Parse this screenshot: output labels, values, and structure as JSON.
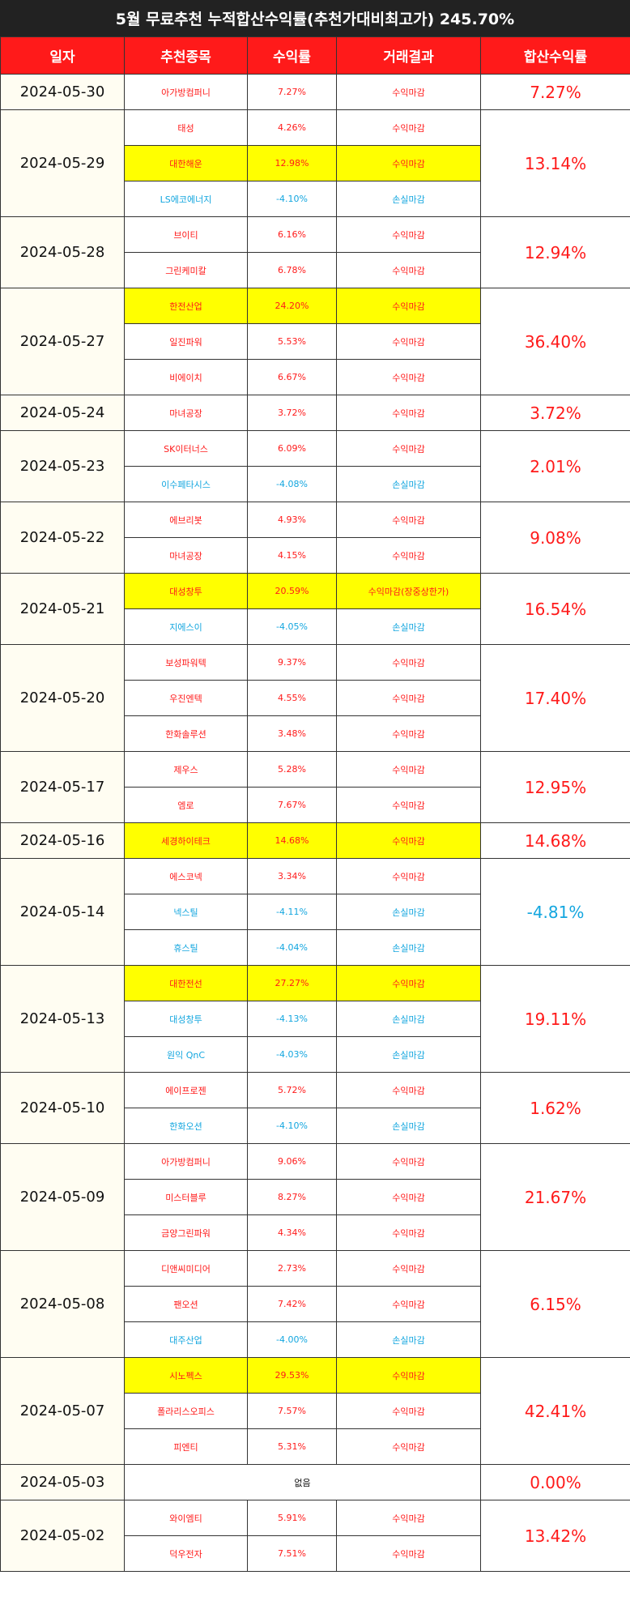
{
  "title": "5월 무료추천 누적합산수익률(추천가대비최고가) 245.70%",
  "headers": [
    "일자",
    "추천종목",
    "수익률",
    "거래결과",
    "합산수익률"
  ],
  "colors": {
    "profit": "#ff1a1a",
    "loss": "#13a6df",
    "header_bg": "#ff1a1a",
    "title_bg": "#222222",
    "highlight": "#ffff00"
  },
  "groups": [
    {
      "date": "2024-05-30",
      "total": "7.27%",
      "total_dir": "up",
      "rows": [
        {
          "stock": "아가방컴퍼니",
          "rate": "7.27%",
          "result": "수익마감",
          "dir": "up",
          "hl": false
        }
      ]
    },
    {
      "date": "2024-05-29",
      "total": "13.14%",
      "total_dir": "up",
      "rows": [
        {
          "stock": "태성",
          "rate": "4.26%",
          "result": "수익마감",
          "dir": "up",
          "hl": false
        },
        {
          "stock": "대한해운",
          "rate": "12.98%",
          "result": "수익마감",
          "dir": "up",
          "hl": true
        },
        {
          "stock": "LS에코에너지",
          "rate": "-4.10%",
          "result": "손실마감",
          "dir": "down",
          "hl": false
        }
      ]
    },
    {
      "date": "2024-05-28",
      "total": "12.94%",
      "total_dir": "up",
      "rows": [
        {
          "stock": "브이티",
          "rate": "6.16%",
          "result": "수익마감",
          "dir": "up",
          "hl": false
        },
        {
          "stock": "그린케미칼",
          "rate": "6.78%",
          "result": "수익마감",
          "dir": "up",
          "hl": false
        }
      ]
    },
    {
      "date": "2024-05-27",
      "total": "36.40%",
      "total_dir": "up",
      "rows": [
        {
          "stock": "한전산업",
          "rate": "24.20%",
          "result": "수익마감",
          "dir": "up",
          "hl": true
        },
        {
          "stock": "일진파워",
          "rate": "5.53%",
          "result": "수익마감",
          "dir": "up",
          "hl": false
        },
        {
          "stock": "비에이치",
          "rate": "6.67%",
          "result": "수익마감",
          "dir": "up",
          "hl": false
        }
      ]
    },
    {
      "date": "2024-05-24",
      "total": "3.72%",
      "total_dir": "up",
      "rows": [
        {
          "stock": "마녀공장",
          "rate": "3.72%",
          "result": "수익마감",
          "dir": "up",
          "hl": false
        }
      ]
    },
    {
      "date": "2024-05-23",
      "total": "2.01%",
      "total_dir": "up",
      "rows": [
        {
          "stock": "SK이터너스",
          "rate": "6.09%",
          "result": "수익마감",
          "dir": "up",
          "hl": false
        },
        {
          "stock": "이수페타시스",
          "rate": "-4.08%",
          "result": "손실마감",
          "dir": "down",
          "hl": false
        }
      ]
    },
    {
      "date": "2024-05-22",
      "total": "9.08%",
      "total_dir": "up",
      "rows": [
        {
          "stock": "에브리봇",
          "rate": "4.93%",
          "result": "수익마감",
          "dir": "up",
          "hl": false
        },
        {
          "stock": "마녀공장",
          "rate": "4.15%",
          "result": "수익마감",
          "dir": "up",
          "hl": false
        }
      ]
    },
    {
      "date": "2024-05-21",
      "total": "16.54%",
      "total_dir": "up",
      "rows": [
        {
          "stock": "대성창투",
          "rate": "20.59%",
          "result": "수익마감(장중상한가)",
          "dir": "up",
          "hl": true
        },
        {
          "stock": "지에스이",
          "rate": "-4.05%",
          "result": "손실마감",
          "dir": "down",
          "hl": false
        }
      ]
    },
    {
      "date": "2024-05-20",
      "total": "17.40%",
      "total_dir": "up",
      "rows": [
        {
          "stock": "보성파워텍",
          "rate": "9.37%",
          "result": "수익마감",
          "dir": "up",
          "hl": false
        },
        {
          "stock": "우진엔텍",
          "rate": "4.55%",
          "result": "수익마감",
          "dir": "up",
          "hl": false
        },
        {
          "stock": "한화솔루션",
          "rate": "3.48%",
          "result": "수익마감",
          "dir": "up",
          "hl": false
        }
      ]
    },
    {
      "date": "2024-05-17",
      "total": "12.95%",
      "total_dir": "up",
      "rows": [
        {
          "stock": "제우스",
          "rate": "5.28%",
          "result": "수익마감",
          "dir": "up",
          "hl": false
        },
        {
          "stock": "엠로",
          "rate": "7.67%",
          "result": "수익마감",
          "dir": "up",
          "hl": false
        }
      ]
    },
    {
      "date": "2024-05-16",
      "total": "14.68%",
      "total_dir": "up",
      "rows": [
        {
          "stock": "세경하이테크",
          "rate": "14.68%",
          "result": "수익마감",
          "dir": "up",
          "hl": true
        }
      ]
    },
    {
      "date": "2024-05-14",
      "total": "-4.81%",
      "total_dir": "down",
      "rows": [
        {
          "stock": "에스코넥",
          "rate": "3.34%",
          "result": "수익마감",
          "dir": "up",
          "hl": false
        },
        {
          "stock": "넥스틸",
          "rate": "-4.11%",
          "result": "손실마감",
          "dir": "down",
          "hl": false
        },
        {
          "stock": "휴스틸",
          "rate": "-4.04%",
          "result": "손실마감",
          "dir": "down",
          "hl": false
        }
      ]
    },
    {
      "date": "2024-05-13",
      "total": "19.11%",
      "total_dir": "up",
      "rows": [
        {
          "stock": "대한전선",
          "rate": "27.27%",
          "result": "수익마감",
          "dir": "up",
          "hl": true
        },
        {
          "stock": "대성창투",
          "rate": "-4.13%",
          "result": "손실마감",
          "dir": "down",
          "hl": false
        },
        {
          "stock": "원익 QnC",
          "rate": "-4.03%",
          "result": "손실마감",
          "dir": "down",
          "hl": false
        }
      ]
    },
    {
      "date": "2024-05-10",
      "total": "1.62%",
      "total_dir": "up",
      "rows": [
        {
          "stock": "에이프로젠",
          "rate": "5.72%",
          "result": "수익마감",
          "dir": "up",
          "hl": false
        },
        {
          "stock": "한화오션",
          "rate": "-4.10%",
          "result": "손실마감",
          "dir": "down",
          "hl": false
        }
      ]
    },
    {
      "date": "2024-05-09",
      "total": "21.67%",
      "total_dir": "up",
      "rows": [
        {
          "stock": "아가방컴퍼니",
          "rate": "9.06%",
          "result": "수익마감",
          "dir": "up",
          "hl": false
        },
        {
          "stock": "미스터블루",
          "rate": "8.27%",
          "result": "수익마감",
          "dir": "up",
          "hl": false
        },
        {
          "stock": "금양그린파워",
          "rate": "4.34%",
          "result": "수익마감",
          "dir": "up",
          "hl": false
        }
      ]
    },
    {
      "date": "2024-05-08",
      "total": "6.15%",
      "total_dir": "up",
      "rows": [
        {
          "stock": "디앤씨미디어",
          "rate": "2.73%",
          "result": "수익마감",
          "dir": "up",
          "hl": false
        },
        {
          "stock": "팬오션",
          "rate": "7.42%",
          "result": "수익마감",
          "dir": "up",
          "hl": false
        },
        {
          "stock": "대주산업",
          "rate": "-4.00%",
          "result": "손실마감",
          "dir": "down",
          "hl": false
        }
      ]
    },
    {
      "date": "2024-05-07",
      "total": "42.41%",
      "total_dir": "up",
      "rows": [
        {
          "stock": "시노펙스",
          "rate": "29.53%",
          "result": "수익마감",
          "dir": "up",
          "hl": true
        },
        {
          "stock": "폴라리스오피스",
          "rate": "7.57%",
          "result": "수익마감",
          "dir": "up",
          "hl": false
        },
        {
          "stock": "피엔티",
          "rate": "5.31%",
          "result": "수익마감",
          "dir": "up",
          "hl": false
        }
      ]
    },
    {
      "date": "2024-05-03",
      "total": "0.00%",
      "total_dir": "up",
      "none": "없음",
      "rows": []
    },
    {
      "date": "2024-05-02",
      "total": "13.42%",
      "total_dir": "up",
      "rows": [
        {
          "stock": "와이엠티",
          "rate": "5.91%",
          "result": "수익마감",
          "dir": "up",
          "hl": false
        },
        {
          "stock": "덕우전자",
          "rate": "7.51%",
          "result": "수익마감",
          "dir": "up",
          "hl": false
        }
      ]
    }
  ]
}
